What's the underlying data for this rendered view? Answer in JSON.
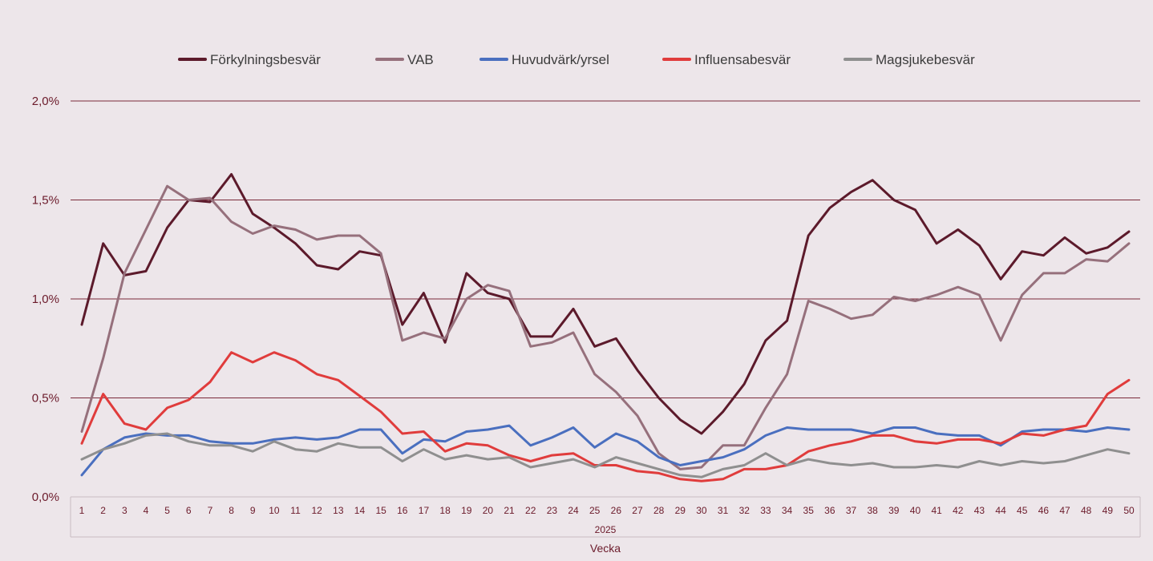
{
  "chart_data": {
    "type": "line",
    "group_label": "2025",
    "xlabel": "Vecka",
    "ylabel": "",
    "y_unit": "%",
    "ylim": [
      0,
      2.0
    ],
    "yticks": [
      {
        "value": 0.0,
        "label": "0,0%"
      },
      {
        "value": 0.5,
        "label": "0,5%"
      },
      {
        "value": 1.0,
        "label": "1,0%"
      },
      {
        "value": 1.5,
        "label": "1,5%"
      },
      {
        "value": 2.0,
        "label": "2,0%"
      }
    ],
    "grid": true,
    "legend_position": "top",
    "x": [
      "1",
      "2",
      "3",
      "4",
      "5",
      "6",
      "7",
      "8",
      "9",
      "10",
      "11",
      "12",
      "13",
      "14",
      "15",
      "16",
      "17",
      "18",
      "19",
      "20",
      "21",
      "22",
      "23",
      "24",
      "25",
      "26",
      "27",
      "28",
      "29",
      "30",
      "31",
      "32",
      "33",
      "34",
      "35",
      "36",
      "37",
      "38",
      "39",
      "40",
      "41",
      "42",
      "43",
      "44",
      "45",
      "46",
      "47",
      "48",
      "49",
      "50"
    ],
    "series": [
      {
        "name": "Förkylningsbesvär",
        "color": "#5c1a2b",
        "values": [
          0.87,
          1.28,
          1.12,
          1.14,
          1.36,
          1.5,
          1.49,
          1.63,
          1.43,
          1.36,
          1.28,
          1.17,
          1.15,
          1.24,
          1.22,
          0.87,
          1.03,
          0.78,
          1.13,
          1.03,
          1.0,
          0.81,
          0.81,
          0.95,
          0.76,
          0.8,
          0.64,
          0.5,
          0.39,
          0.32,
          0.43,
          0.57,
          0.79,
          0.89,
          1.32,
          1.46,
          1.54,
          1.6,
          1.5,
          1.45,
          1.28,
          1.35,
          1.27,
          1.1,
          1.24,
          1.22,
          1.31,
          1.23,
          1.26,
          1.34
        ]
      },
      {
        "name": "VAB",
        "color": "#96707c",
        "values": [
          0.33,
          0.7,
          1.13,
          1.35,
          1.57,
          1.5,
          1.51,
          1.39,
          1.33,
          1.37,
          1.35,
          1.3,
          1.32,
          1.32,
          1.23,
          0.79,
          0.83,
          0.8,
          1.0,
          1.07,
          1.04,
          0.76,
          0.78,
          0.83,
          0.62,
          0.53,
          0.41,
          0.22,
          0.14,
          0.15,
          0.26,
          0.26,
          0.45,
          0.62,
          0.99,
          0.95,
          0.9,
          0.92,
          1.01,
          0.99,
          1.02,
          1.06,
          1.02,
          0.79,
          1.02,
          1.13,
          1.13,
          1.2,
          1.19,
          1.28
        ]
      },
      {
        "name": "Huvudvärk/yrsel",
        "color": "#4a6fbf",
        "values": [
          0.11,
          0.24,
          0.3,
          0.32,
          0.31,
          0.31,
          0.28,
          0.27,
          0.27,
          0.29,
          0.3,
          0.29,
          0.3,
          0.34,
          0.34,
          0.22,
          0.29,
          0.28,
          0.33,
          0.34,
          0.36,
          0.26,
          0.3,
          0.35,
          0.25,
          0.32,
          0.28,
          0.2,
          0.16,
          0.18,
          0.2,
          0.24,
          0.31,
          0.35,
          0.34,
          0.34,
          0.34,
          0.32,
          0.35,
          0.35,
          0.32,
          0.31,
          0.31,
          0.26,
          0.33,
          0.34,
          0.34,
          0.33,
          0.35,
          0.34
        ]
      },
      {
        "name": "Influensabesvär",
        "color": "#e03c3c",
        "values": [
          0.27,
          0.52,
          0.37,
          0.34,
          0.45,
          0.49,
          0.58,
          0.73,
          0.68,
          0.73,
          0.69,
          0.62,
          0.59,
          0.51,
          0.43,
          0.32,
          0.33,
          0.23,
          0.27,
          0.26,
          0.21,
          0.18,
          0.21,
          0.22,
          0.16,
          0.16,
          0.13,
          0.12,
          0.09,
          0.08,
          0.09,
          0.14,
          0.14,
          0.16,
          0.23,
          0.26,
          0.28,
          0.31,
          0.31,
          0.28,
          0.27,
          0.29,
          0.29,
          0.27,
          0.32,
          0.31,
          0.34,
          0.36,
          0.52,
          0.59
        ]
      },
      {
        "name": "Magsjukebesvär",
        "color": "#8f8f8f",
        "values": [
          0.19,
          0.24,
          0.27,
          0.31,
          0.32,
          0.28,
          0.26,
          0.26,
          0.23,
          0.28,
          0.24,
          0.23,
          0.27,
          0.25,
          0.25,
          0.18,
          0.24,
          0.19,
          0.21,
          0.19,
          0.2,
          0.15,
          0.17,
          0.19,
          0.15,
          0.2,
          0.17,
          0.14,
          0.11,
          0.1,
          0.14,
          0.16,
          0.22,
          0.16,
          0.19,
          0.17,
          0.16,
          0.17,
          0.15,
          0.15,
          0.16,
          0.15,
          0.18,
          0.16,
          0.18,
          0.17,
          0.18,
          0.21,
          0.24,
          0.22
        ]
      }
    ]
  },
  "colors": {
    "background": "#ede6ea",
    "gridline": "#7a2a3a",
    "axis": "#c9bcc1",
    "text": "#6b1a2a",
    "legend_text": "#3c3c3c"
  }
}
